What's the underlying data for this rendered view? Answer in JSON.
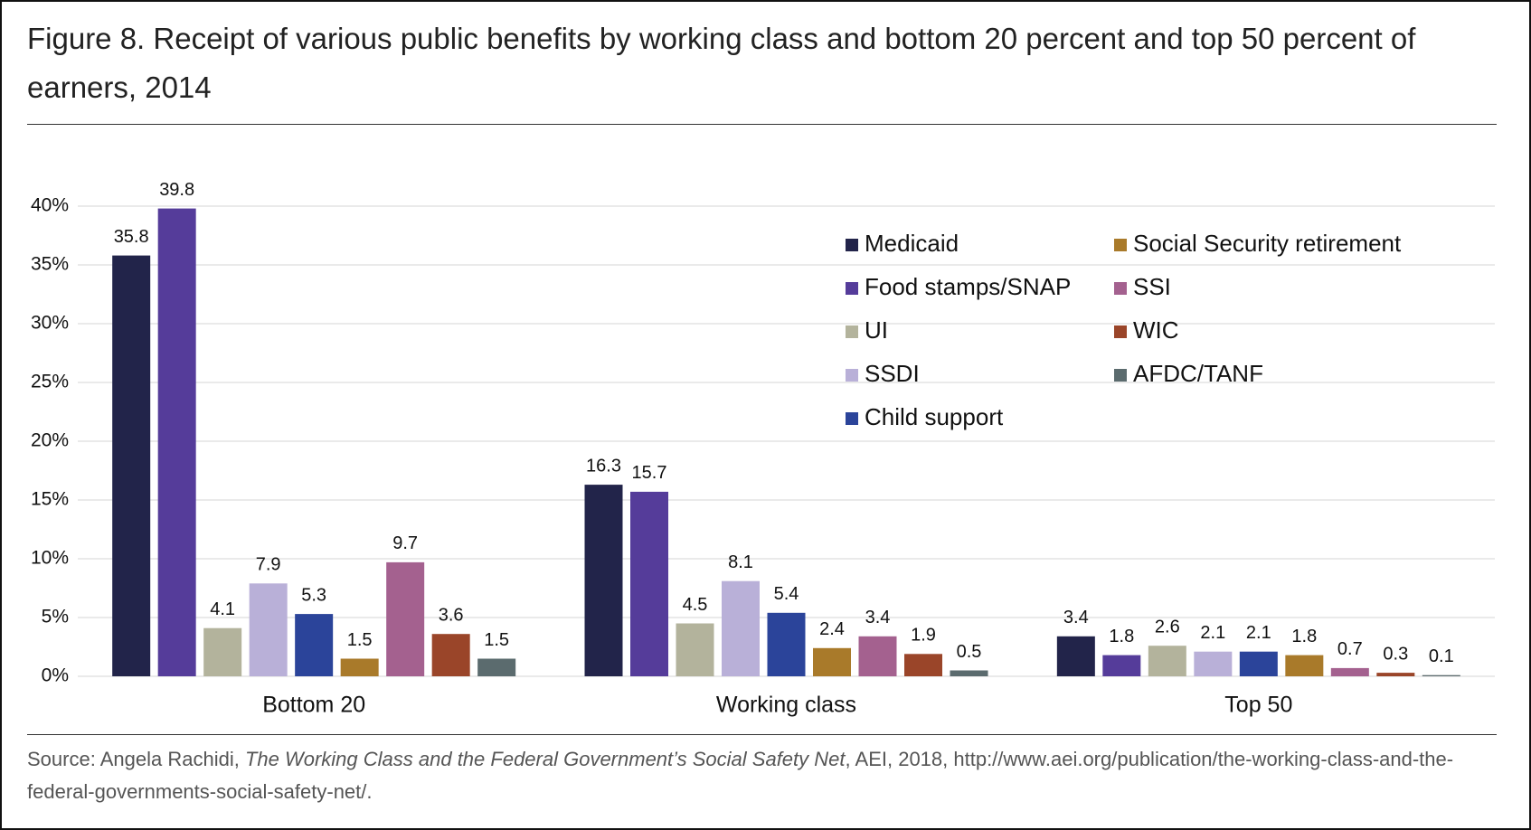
{
  "chart_data": {
    "type": "bar",
    "title": "Figure 8. Receipt of various public benefits by working class and bottom 20 percent and top 50 percent of earners, 2014",
    "categories": [
      "Bottom 20",
      "Working class",
      "Top 50"
    ],
    "series": [
      {
        "name": "Medicaid",
        "color": "#22244a",
        "values": [
          35.8,
          16.3,
          3.4
        ]
      },
      {
        "name": "Food stamps/SNAP",
        "color": "#553c9a",
        "values": [
          39.8,
          15.7,
          1.8
        ]
      },
      {
        "name": "UI",
        "color": "#b3b39c",
        "values": [
          4.1,
          4.5,
          2.6
        ]
      },
      {
        "name": "SSDI",
        "color": "#b9b0d8",
        "values": [
          7.9,
          8.1,
          2.1
        ]
      },
      {
        "name": "Child support",
        "color": "#2b449a",
        "values": [
          5.3,
          5.4,
          2.1
        ]
      },
      {
        "name": "Social Security retirement",
        "color": "#a97a2a",
        "values": [
          1.5,
          2.4,
          1.8
        ]
      },
      {
        "name": "SSI",
        "color": "#a4618f",
        "values": [
          9.7,
          3.4,
          0.7
        ]
      },
      {
        "name": "WIC",
        "color": "#9a4529",
        "values": [
          3.6,
          1.9,
          0.3
        ]
      },
      {
        "name": "AFDC/TANF",
        "color": "#5b6b6e",
        "values": [
          1.5,
          0.5,
          0.1
        ]
      }
    ],
    "ylim": [
      0,
      40
    ],
    "yticks": [
      {
        "value": 0,
        "label": "0%"
      },
      {
        "value": 5,
        "label": "5%"
      },
      {
        "value": 10,
        "label": "10%"
      },
      {
        "value": 15,
        "label": "15%"
      },
      {
        "value": 20,
        "label": "20%"
      },
      {
        "value": 25,
        "label": "25%"
      },
      {
        "value": 30,
        "label": "30%"
      },
      {
        "value": 35,
        "label": "35%"
      },
      {
        "value": 40,
        "label": "40%"
      }
    ],
    "grid": true,
    "legend": "top-right",
    "source": {
      "prefix": "Source: Angela Rachidi, ",
      "title": "The Working Class and the Federal Government’s Social Safety Net",
      "suffix": ", AEI, 2018, http://www.aei.org/publication/the-working-class-and-the-federal-governments-social-safety-net/."
    }
  }
}
